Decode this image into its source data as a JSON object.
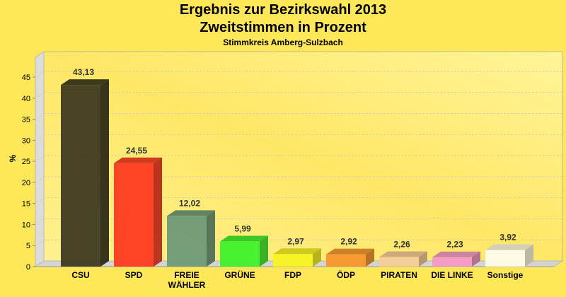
{
  "chart_data": {
    "type": "bar",
    "title": "Ergebnis zur Bezirkswahl 2013",
    "subtitle": "Zweitstimmen in Prozent",
    "subtitle2": "Stimmkreis Amberg-Sulzbach",
    "xlabel": "",
    "ylabel": "%",
    "ylim": [
      0,
      45
    ],
    "yticks": [
      0,
      5,
      10,
      15,
      20,
      25,
      30,
      35,
      40,
      45
    ],
    "grid": true,
    "categories": [
      "CSU",
      "SPD",
      "FREIE WÄHLER",
      "GRÜNE",
      "FDP",
      "ÖDP",
      "PIRATEN",
      "DIE LINKE",
      "Sonstige"
    ],
    "values": [
      43.13,
      24.55,
      12.02,
      5.99,
      2.97,
      2.92,
      2.26,
      2.23,
      3.92
    ],
    "data_labels": [
      "43,13",
      "24,55",
      "12,02",
      "5,99",
      "2,97",
      "2,92",
      "2,26",
      "2,23",
      "3,92"
    ],
    "colors": [
      "#3e3a20",
      "#ff3a20",
      "#6e9a78",
      "#3ef22a",
      "#f8f420",
      "#f8962c",
      "#f6cc98",
      "#f598c6",
      "#fffbea"
    ]
  }
}
